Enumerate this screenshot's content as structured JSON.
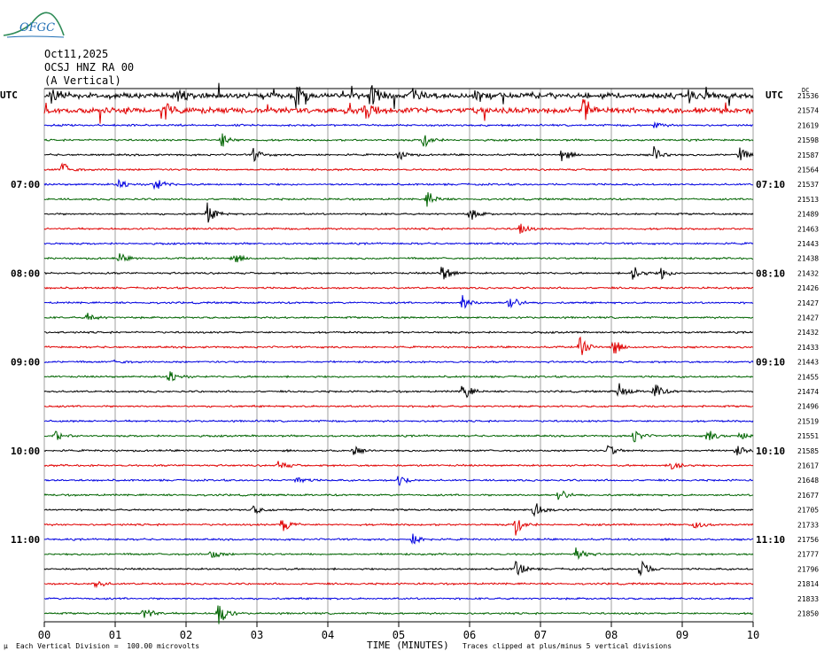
{
  "header": {
    "logo_text": "OFGC",
    "date": "Oct11,2025",
    "station": "OCSJ HNZ RA 00",
    "component": "(A Vertical)"
  },
  "footer": {
    "scale_mark": "μ",
    "scale": "Each Vertical Division =  100.00 microvolts",
    "clip_note": "Traces clipped at plus/minus 5 vertical divisions"
  },
  "chart_data": {
    "type": "line",
    "title": "",
    "xlabel": "TIME (MINUTES)",
    "ylabel": "",
    "xlim": [
      0,
      10
    ],
    "x_ticks": [
      "00",
      "01",
      "02",
      "03",
      "04",
      "05",
      "06",
      "07",
      "08",
      "09",
      "10"
    ],
    "left_axis_label": "UTC",
    "right_axis_label": "UTC",
    "right_header": "DC",
    "left_time_labels": [
      {
        "row": 6,
        "label": "07:00"
      },
      {
        "row": 12,
        "label": "08:00"
      },
      {
        "row": 18,
        "label": "09:00"
      },
      {
        "row": 24,
        "label": "10:00"
      },
      {
        "row": 30,
        "label": "11:00"
      }
    ],
    "right_time_labels": [
      {
        "row": 6,
        "label": "07:10"
      },
      {
        "row": 12,
        "label": "08:10"
      },
      {
        "row": 18,
        "label": "09:10"
      },
      {
        "row": 24,
        "label": "10:10"
      },
      {
        "row": 30,
        "label": "11:10"
      }
    ],
    "trace_colors": [
      "#000000",
      "#e00000",
      "#0000e0",
      "#006400"
    ],
    "dc_offsets": [
      21536,
      21574,
      21619,
      21598,
      21587,
      21564,
      21537,
      21513,
      21489,
      21463,
      21443,
      21438,
      21432,
      21426,
      21427,
      21427,
      21432,
      21433,
      21443,
      21455,
      21474,
      21496,
      21519,
      21551,
      21585,
      21617,
      21648,
      21677,
      21705,
      21733,
      21756,
      21777,
      21796,
      21814,
      21833,
      21850
    ],
    "events": [
      {
        "row": 0,
        "t": 0.1,
        "amp": 9
      },
      {
        "row": 0,
        "t": 1.9,
        "amp": 9
      },
      {
        "row": 0,
        "t": 3.55,
        "amp": 14
      },
      {
        "row": 0,
        "t": 4.6,
        "amp": 14
      },
      {
        "row": 0,
        "t": 5.2,
        "amp": 7
      },
      {
        "row": 0,
        "t": 6.1,
        "amp": 7
      },
      {
        "row": 0,
        "t": 9.1,
        "amp": 7
      },
      {
        "row": 1,
        "t": 1.7,
        "amp": 10
      },
      {
        "row": 1,
        "t": 4.5,
        "amp": 14
      },
      {
        "row": 1,
        "t": 7.6,
        "amp": 12
      },
      {
        "row": 2,
        "t": 8.6,
        "amp": 4
      },
      {
        "row": 3,
        "t": 2.5,
        "amp": 9
      },
      {
        "row": 3,
        "t": 5.35,
        "amp": 10
      },
      {
        "row": 4,
        "t": 2.95,
        "amp": 7
      },
      {
        "row": 4,
        "t": 5.0,
        "amp": 6
      },
      {
        "row": 4,
        "t": 7.3,
        "amp": 9
      },
      {
        "row": 4,
        "t": 8.6,
        "amp": 9
      },
      {
        "row": 4,
        "t": 9.8,
        "amp": 9
      },
      {
        "row": 5,
        "t": 0.25,
        "amp": 10
      },
      {
        "row": 6,
        "t": 1.05,
        "amp": 8
      },
      {
        "row": 6,
        "t": 1.55,
        "amp": 10
      },
      {
        "row": 7,
        "t": 5.4,
        "amp": 10
      },
      {
        "row": 8,
        "t": 2.3,
        "amp": 12
      },
      {
        "row": 8,
        "t": 6.0,
        "amp": 8
      },
      {
        "row": 9,
        "t": 6.7,
        "amp": 7
      },
      {
        "row": 11,
        "t": 1.05,
        "amp": 6
      },
      {
        "row": 11,
        "t": 2.65,
        "amp": 8
      },
      {
        "row": 12,
        "t": 5.6,
        "amp": 12
      },
      {
        "row": 12,
        "t": 8.3,
        "amp": 10
      },
      {
        "row": 12,
        "t": 8.7,
        "amp": 7
      },
      {
        "row": 14,
        "t": 5.9,
        "amp": 9
      },
      {
        "row": 14,
        "t": 6.55,
        "amp": 12
      },
      {
        "row": 15,
        "t": 0.6,
        "amp": 7
      },
      {
        "row": 17,
        "t": 7.55,
        "amp": 12
      },
      {
        "row": 17,
        "t": 8.0,
        "amp": 13
      },
      {
        "row": 18,
        "t": 1.0,
        "amp": 3
      },
      {
        "row": 19,
        "t": 1.75,
        "amp": 11
      },
      {
        "row": 20,
        "t": 5.9,
        "amp": 12
      },
      {
        "row": 20,
        "t": 8.1,
        "amp": 10
      },
      {
        "row": 20,
        "t": 8.6,
        "amp": 10
      },
      {
        "row": 23,
        "t": 0.15,
        "amp": 6
      },
      {
        "row": 23,
        "t": 8.3,
        "amp": 9
      },
      {
        "row": 23,
        "t": 9.35,
        "amp": 8
      },
      {
        "row": 23,
        "t": 9.8,
        "amp": 6
      },
      {
        "row": 24,
        "t": 4.35,
        "amp": 6
      },
      {
        "row": 24,
        "t": 7.95,
        "amp": 7
      },
      {
        "row": 24,
        "t": 9.75,
        "amp": 8
      },
      {
        "row": 25,
        "t": 3.3,
        "amp": 7
      },
      {
        "row": 25,
        "t": 8.85,
        "amp": 9
      },
      {
        "row": 26,
        "t": 3.55,
        "amp": 6
      },
      {
        "row": 26,
        "t": 5.0,
        "amp": 7
      },
      {
        "row": 27,
        "t": 7.25,
        "amp": 9
      },
      {
        "row": 28,
        "t": 2.95,
        "amp": 5
      },
      {
        "row": 28,
        "t": 6.9,
        "amp": 12
      },
      {
        "row": 29,
        "t": 3.35,
        "amp": 10
      },
      {
        "row": 29,
        "t": 6.65,
        "amp": 12
      },
      {
        "row": 29,
        "t": 9.15,
        "amp": 7
      },
      {
        "row": 30,
        "t": 5.2,
        "amp": 7
      },
      {
        "row": 31,
        "t": 2.35,
        "amp": 7
      },
      {
        "row": 31,
        "t": 7.5,
        "amp": 9
      },
      {
        "row": 32,
        "t": 6.65,
        "amp": 11
      },
      {
        "row": 32,
        "t": 8.4,
        "amp": 13
      },
      {
        "row": 33,
        "t": 0.7,
        "amp": 7
      },
      {
        "row": 35,
        "t": 1.4,
        "amp": 9
      },
      {
        "row": 35,
        "t": 2.45,
        "amp": 16
      }
    ]
  }
}
